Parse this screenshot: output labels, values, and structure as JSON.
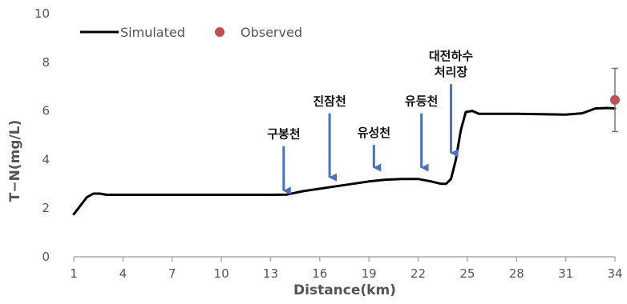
{
  "colors": {
    "simulated_line": "#000000",
    "observed_point": "#c0504d",
    "arrow": "#4472c4",
    "axis": "#aaaaaa",
    "text": "#555555"
  },
  "chart_data": {
    "type": "line",
    "xlabel": "Distance(km)",
    "ylabel": "T−N(mg/L)",
    "xlim": [
      1,
      34
    ],
    "ylim": [
      0,
      10
    ],
    "xticks": [
      "1",
      "4",
      "7",
      "10",
      "13",
      "16",
      "19",
      "22",
      "25",
      "28",
      "31",
      "34"
    ],
    "yticks": [
      "0",
      "2",
      "4",
      "6",
      "8",
      "10"
    ],
    "grid": false,
    "legend_position": "top-left",
    "series": [
      {
        "name": "Simulated",
        "style": "line",
        "x": [
          1.0,
          1.4,
          1.8,
          2.2,
          2.6,
          3.0,
          4,
          5,
          7,
          10,
          13,
          14.0,
          15,
          16,
          17,
          18,
          19,
          20,
          21,
          22,
          22.8,
          23.4,
          23.7,
          24.0,
          24.3,
          24.6,
          24.9,
          25.3,
          25.7,
          26.5,
          28,
          31,
          32.0,
          32.8,
          33.5,
          34.0
        ],
        "y": [
          1.75,
          2.1,
          2.45,
          2.6,
          2.6,
          2.55,
          2.55,
          2.55,
          2.55,
          2.55,
          2.55,
          2.56,
          2.7,
          2.8,
          2.9,
          3.0,
          3.1,
          3.17,
          3.2,
          3.2,
          3.1,
          3.0,
          3.0,
          3.2,
          4.0,
          5.2,
          5.95,
          6.0,
          5.88,
          5.88,
          5.88,
          5.85,
          5.9,
          6.1,
          6.12,
          6.1
        ]
      },
      {
        "name": "Observed",
        "style": "point",
        "x": [
          34
        ],
        "y": [
          6.45
        ],
        "error": [
          [
            5.15,
            7.75
          ]
        ]
      }
    ],
    "annotations": [
      {
        "label": [
          "구봉천"
        ],
        "x": 13.8,
        "y_top": 4.55,
        "y_bottom": 2.65
      },
      {
        "label": [
          "진잠천"
        ],
        "x": 16.6,
        "y_top": 5.9,
        "y_bottom": 3.2
      },
      {
        "label": [
          "유성천"
        ],
        "x": 19.3,
        "y_top": 4.6,
        "y_bottom": 3.6
      },
      {
        "label": [
          "유등천"
        ],
        "x": 22.2,
        "y_top": 5.9,
        "y_bottom": 3.6
      },
      {
        "label": [
          "대전하수",
          "처리장"
        ],
        "x": 24.0,
        "y_top": 7.1,
        "y_bottom": 4.2
      }
    ]
  }
}
